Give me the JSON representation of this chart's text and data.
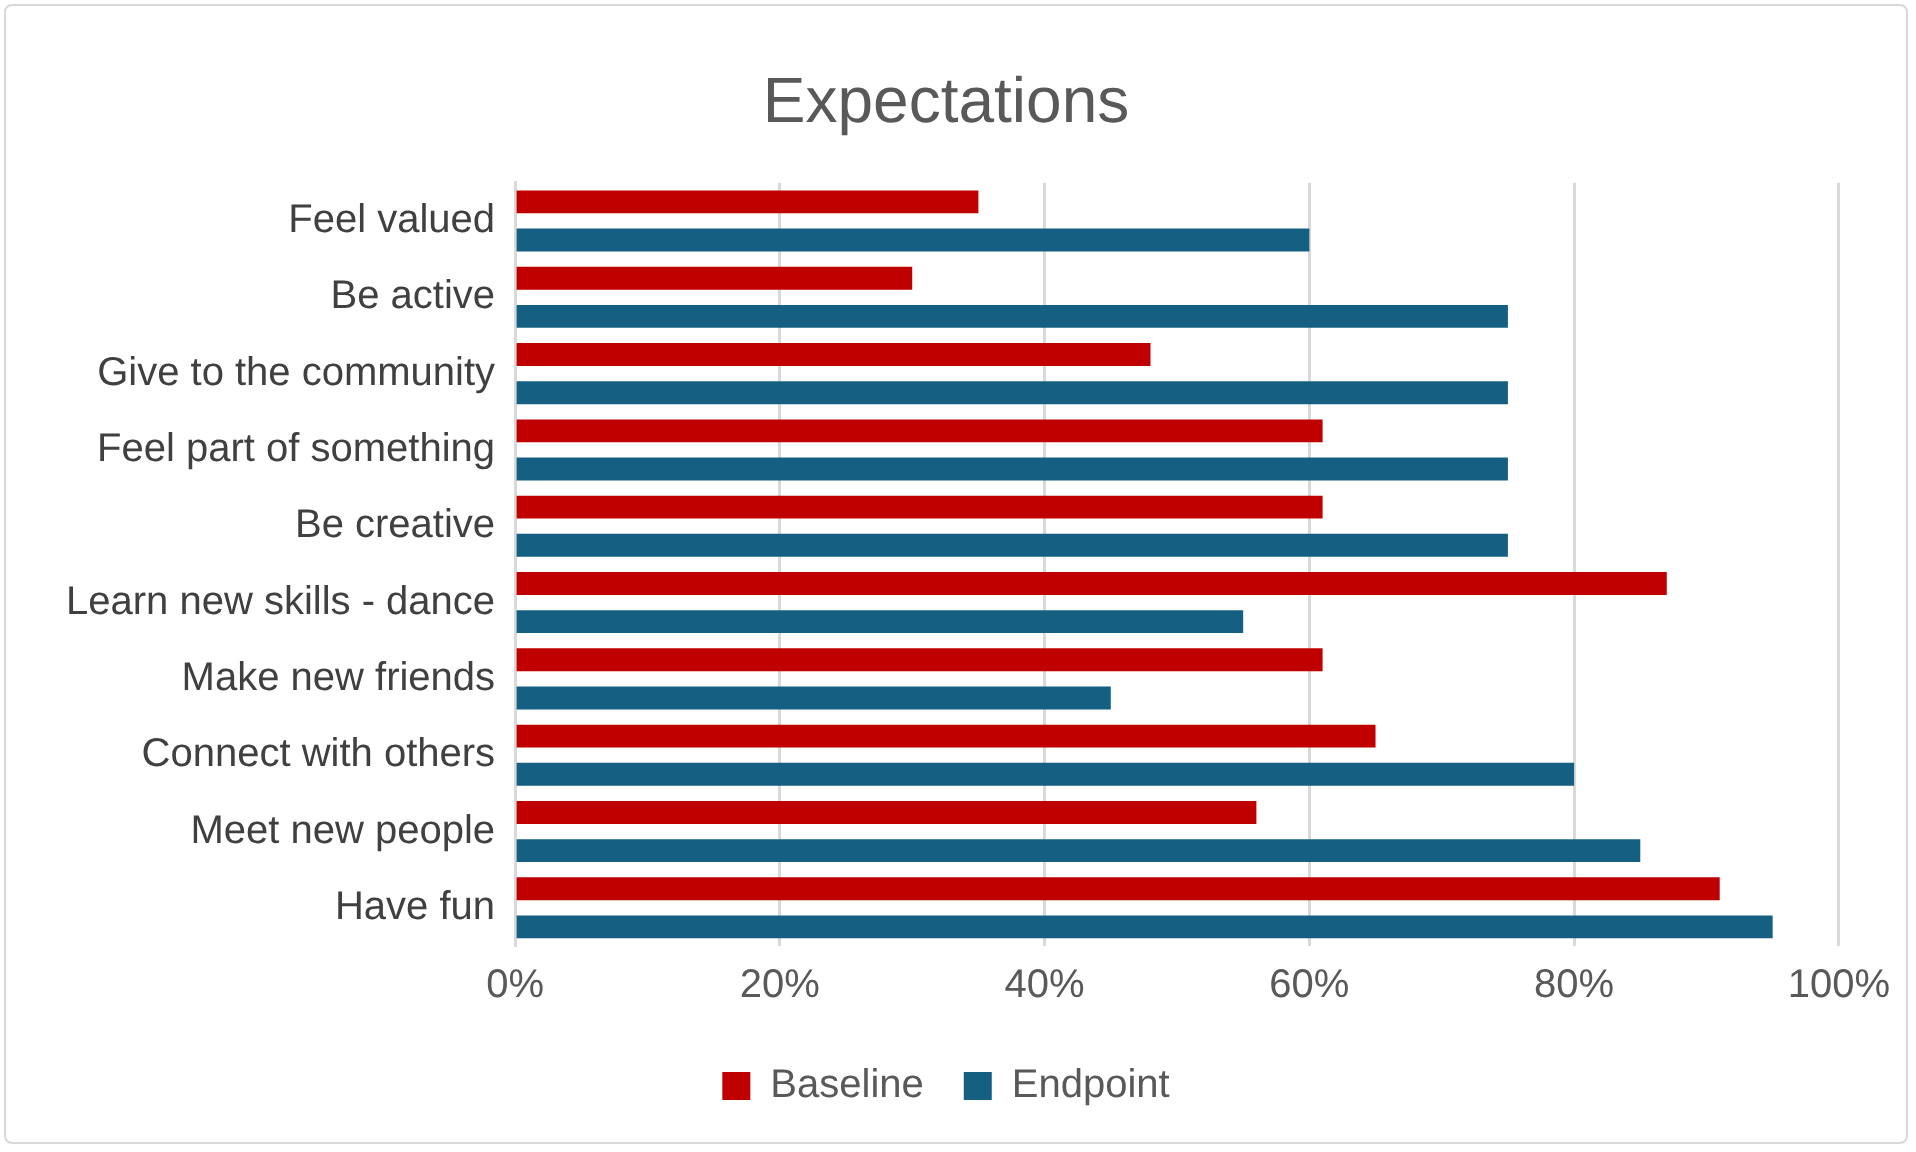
{
  "chart_data": {
    "type": "bar",
    "orientation": "horizontal",
    "title": "Expectations",
    "categories": [
      "Feel valued",
      "Be active",
      "Give to the community",
      "Feel part of something",
      "Be creative",
      "Learn new skills - dance",
      "Make new friends",
      "Connect with others",
      "Meet new people",
      "Have fun"
    ],
    "series": [
      {
        "name": "Baseline",
        "color": "#c00000",
        "values": [
          35,
          30,
          48,
          61,
          61,
          87,
          61,
          65,
          56,
          91
        ]
      },
      {
        "name": "Endpoint",
        "color": "#156082",
        "values": [
          60,
          75,
          75,
          75,
          75,
          55,
          45,
          80,
          85,
          95
        ]
      }
    ],
    "xlim": [
      0,
      100
    ],
    "xticks": [
      {
        "value": 0,
        "label": "0%"
      },
      {
        "value": 20,
        "label": "20%"
      },
      {
        "value": 40,
        "label": "40%"
      },
      {
        "value": 60,
        "label": "60%"
      },
      {
        "value": 80,
        "label": "80%"
      },
      {
        "value": 100,
        "label": "100%"
      }
    ],
    "grid": "x",
    "legend": "bottom"
  }
}
